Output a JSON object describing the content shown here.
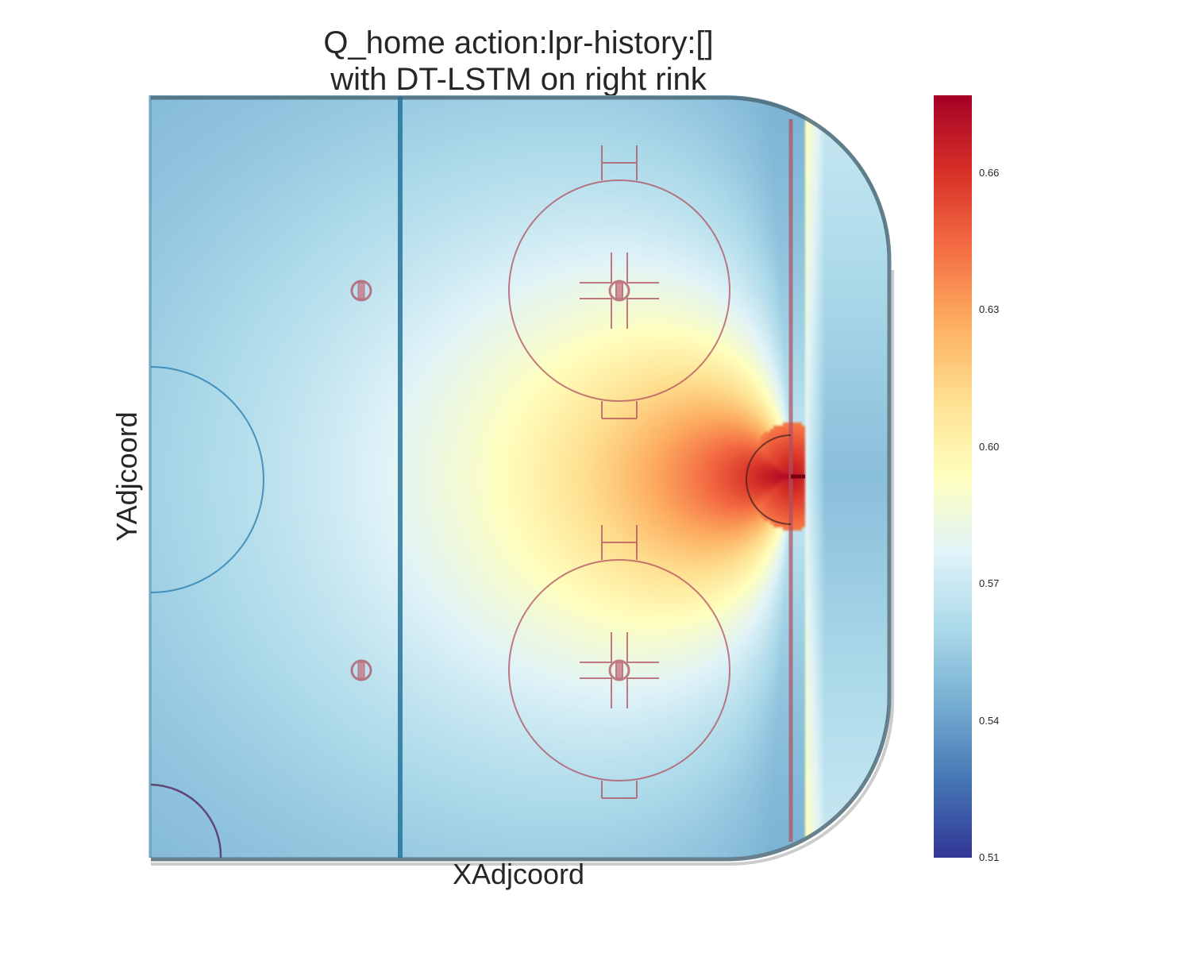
{
  "chart_data": {
    "type": "heatmap",
    "title_line1": "Q_home action:lpr-history:[]",
    "title_line2": "with DT-LSTM on right rink",
    "xlabel": "XAdjcoord",
    "ylabel": "YAdjcoord",
    "colormap": "RdYlBu_r",
    "colorbar": {
      "min": 0.51,
      "max": 0.677,
      "ticks": [
        "0.51",
        "0.54",
        "0.57",
        "0.60",
        "0.63",
        "0.66"
      ],
      "tick_values": [
        0.51,
        0.54,
        0.57,
        0.6,
        0.63,
        0.66
      ]
    },
    "x_range": [
      0,
      100
    ],
    "y_range": [
      -42.5,
      42.5
    ],
    "peak": {
      "x": 87,
      "y": 0,
      "value": 0.677
    },
    "value_in_goal_crease": 0.67,
    "value_behind_goal_line": 0.55,
    "value_at_corners": 0.54
  },
  "colors": {
    "rink_lines_blue": "#1f6e99",
    "rink_lines_red": "#b05060",
    "boards": "#4d6b78"
  }
}
